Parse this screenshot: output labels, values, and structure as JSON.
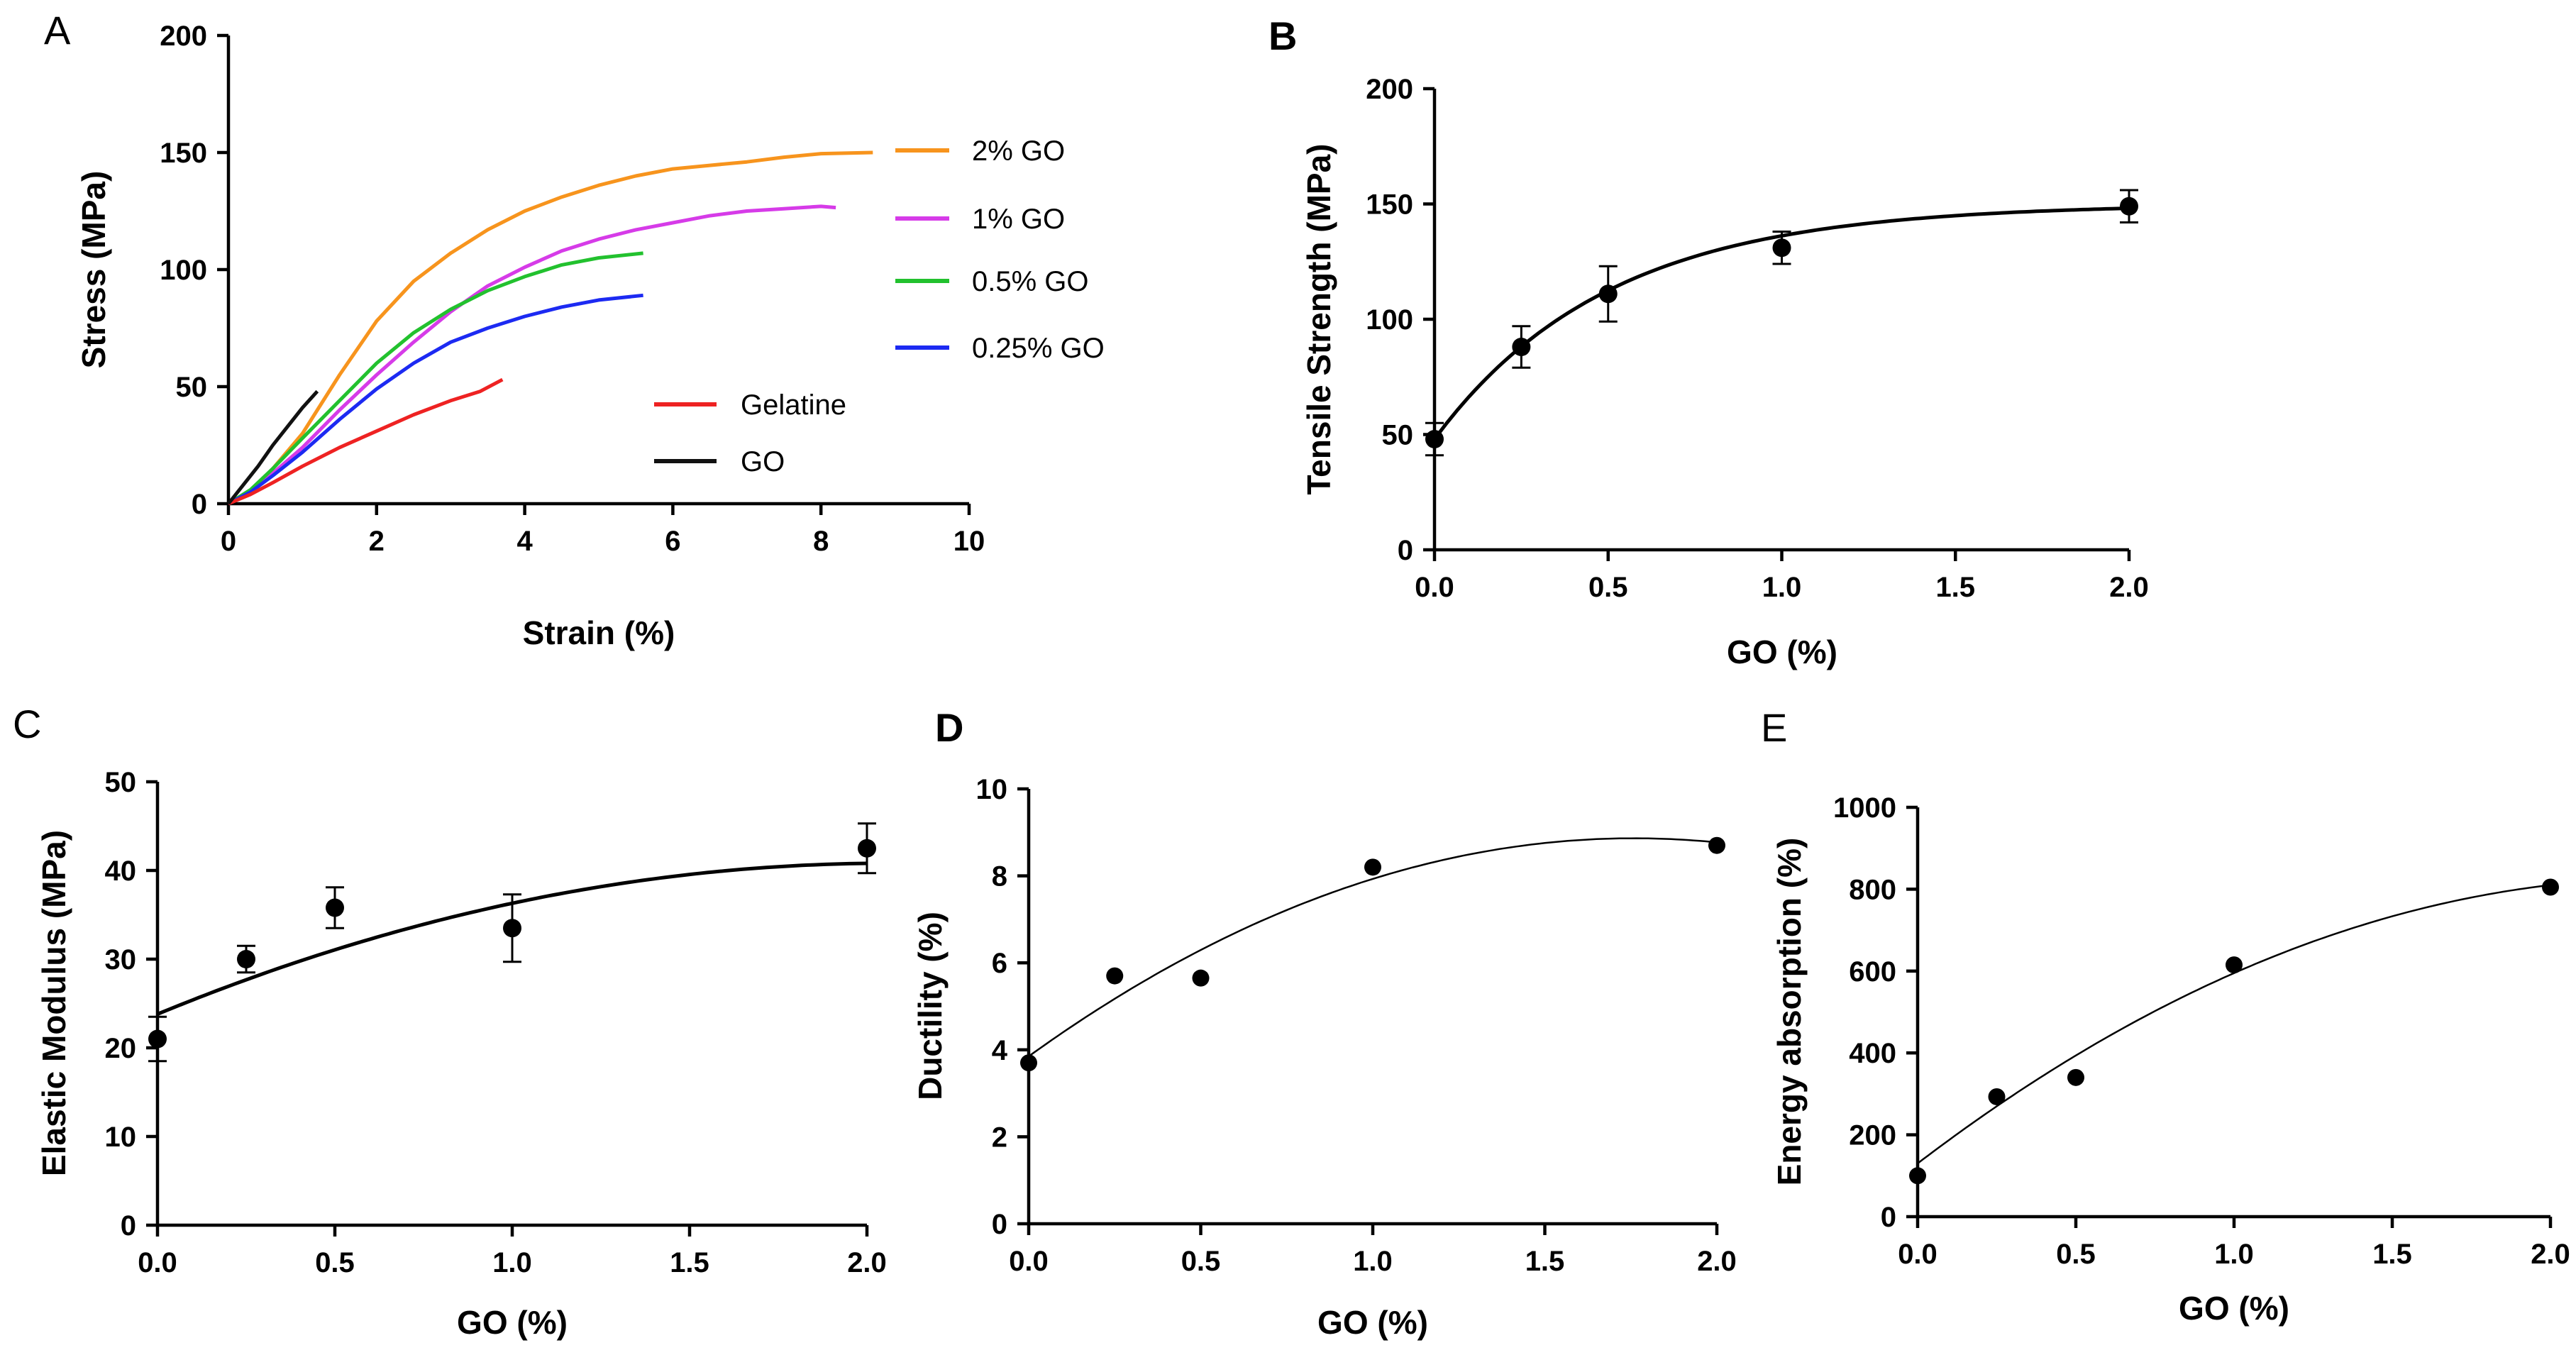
{
  "chart_data": [
    {
      "panel": "A",
      "type": "line",
      "xlabel": "Strain (%)",
      "ylabel": "Stress (MPa)",
      "xlim": [
        0,
        10
      ],
      "ylim": [
        0,
        200
      ],
      "xticks": [
        "0",
        "2",
        "4",
        "6",
        "8",
        "10"
      ],
      "yticks": [
        "0",
        "50",
        "100",
        "150",
        "200"
      ],
      "series": [
        {
          "name": "2% GO",
          "color": "#F7941D",
          "points": [
            [
              0,
              0
            ],
            [
              0.3,
              5
            ],
            [
              0.6,
              15
            ],
            [
              1,
              30
            ],
            [
              1.5,
              55
            ],
            [
              2,
              78
            ],
            [
              2.5,
              95
            ],
            [
              3,
              107
            ],
            [
              3.5,
              117
            ],
            [
              4,
              125
            ],
            [
              4.5,
              131
            ],
            [
              5,
              136
            ],
            [
              5.5,
              140
            ],
            [
              6,
              143
            ],
            [
              6.5,
              144.5
            ],
            [
              7,
              146
            ],
            [
              7.5,
              148
            ],
            [
              8,
              149.5
            ],
            [
              8.7,
              150
            ]
          ]
        },
        {
          "name": "1% GO",
          "color": "#D63BE8",
          "points": [
            [
              0,
              0
            ],
            [
              0.3,
              5
            ],
            [
              0.6,
              13
            ],
            [
              1,
              24
            ],
            [
              1.5,
              40
            ],
            [
              2,
              55
            ],
            [
              2.5,
              69
            ],
            [
              3,
              82
            ],
            [
              3.5,
              93
            ],
            [
              4,
              101
            ],
            [
              4.5,
              108
            ],
            [
              5,
              113
            ],
            [
              5.5,
              117
            ],
            [
              6,
              120
            ],
            [
              6.5,
              123
            ],
            [
              7,
              125
            ],
            [
              7.5,
              126
            ],
            [
              8,
              127
            ],
            [
              8.2,
              126.5
            ]
          ]
        },
        {
          "name": "0.5% GO",
          "color": "#22C12E",
          "points": [
            [
              0,
              0
            ],
            [
              0.3,
              6
            ],
            [
              0.6,
              15
            ],
            [
              1,
              28
            ],
            [
              1.5,
              44
            ],
            [
              2,
              60
            ],
            [
              2.5,
              73
            ],
            [
              3,
              83
            ],
            [
              3.5,
              91
            ],
            [
              4,
              97
            ],
            [
              4.5,
              102
            ],
            [
              5,
              105
            ],
            [
              5.6,
              107
            ]
          ]
        },
        {
          "name": "0.25% GO",
          "color": "#1C2AF2",
          "points": [
            [
              0,
              0
            ],
            [
              0.3,
              5
            ],
            [
              0.6,
              12
            ],
            [
              1,
              22
            ],
            [
              1.5,
              36
            ],
            [
              2,
              49
            ],
            [
              2.5,
              60
            ],
            [
              3,
              69
            ],
            [
              3.5,
              75
            ],
            [
              4,
              80
            ],
            [
              4.5,
              84
            ],
            [
              5,
              87
            ],
            [
              5.6,
              89
            ]
          ]
        },
        {
          "name": "Gelatine",
          "color": "#EE2222",
          "points": [
            [
              0,
              0
            ],
            [
              0.3,
              4
            ],
            [
              0.6,
              9
            ],
            [
              1,
              16
            ],
            [
              1.5,
              24
            ],
            [
              2,
              31
            ],
            [
              2.5,
              38
            ],
            [
              3,
              44
            ],
            [
              3.4,
              48
            ],
            [
              3.7,
              53
            ]
          ]
        },
        {
          "name": "GO",
          "color": "#111111",
          "points": [
            [
              0,
              0
            ],
            [
              0.2,
              8
            ],
            [
              0.4,
              16
            ],
            [
              0.6,
              25
            ],
            [
              0.8,
              33
            ],
            [
              1,
              41
            ],
            [
              1.2,
              48
            ]
          ]
        }
      ]
    },
    {
      "panel": "B",
      "type": "scatter",
      "xlabel": "GO (%)",
      "ylabel": "Tensile Strength (MPa)",
      "xlim": [
        0,
        2
      ],
      "ylim": [
        0,
        200
      ],
      "xticks": [
        "0.0",
        "0.5",
        "1.0",
        "1.5",
        "2.0"
      ],
      "yticks": [
        "0",
        "50",
        "100",
        "150",
        "200"
      ],
      "points": [
        {
          "x": 0,
          "y": 48,
          "err": 7
        },
        {
          "x": 0.25,
          "y": 88,
          "err": 9
        },
        {
          "x": 0.5,
          "y": 111,
          "err": 12
        },
        {
          "x": 1.0,
          "y": 131,
          "err": 7
        },
        {
          "x": 2.0,
          "y": 149,
          "err": 7
        }
      ],
      "fit": "exp",
      "fit_params": {
        "plateau": 150,
        "y0": 48,
        "k": 2.0
      }
    },
    {
      "panel": "C",
      "type": "scatter",
      "xlabel": "GO (%)",
      "ylabel": "Elastic Modulus (MPa)",
      "xlim": [
        0,
        2
      ],
      "ylim": [
        0,
        50
      ],
      "xticks": [
        "0.0",
        "0.5",
        "1.0",
        "1.5",
        "2.0"
      ],
      "yticks": [
        "0",
        "10",
        "20",
        "30",
        "40",
        "50"
      ],
      "points": [
        {
          "x": 0,
          "y": 21,
          "err": 2.5
        },
        {
          "x": 0.25,
          "y": 30,
          "err": 1.5
        },
        {
          "x": 0.5,
          "y": 35.8,
          "err": 2.3
        },
        {
          "x": 1.0,
          "y": 33.5,
          "err": 3.8
        },
        {
          "x": 2.0,
          "y": 42.5,
          "err": 2.8
        }
      ],
      "fit": "poly",
      "fit_coeffs": [
        23.8,
        16.5,
        -4.0
      ]
    },
    {
      "panel": "D",
      "type": "scatter",
      "xlabel": "GO (%)",
      "ylabel": "Ductility (%)",
      "xlim": [
        0,
        2
      ],
      "ylim": [
        0,
        10
      ],
      "xticks": [
        "0.0",
        "0.5",
        "1.0",
        "1.5",
        "2.0"
      ],
      "yticks": [
        "0",
        "2",
        "4",
        "6",
        "8",
        "10"
      ],
      "points": [
        {
          "x": 0,
          "y": 3.7
        },
        {
          "x": 0.25,
          "y": 5.7
        },
        {
          "x": 0.5,
          "y": 5.65
        },
        {
          "x": 1.0,
          "y": 8.2
        },
        {
          "x": 2.0,
          "y": 8.7
        }
      ],
      "fit": "poly",
      "fit_coeffs": [
        3.85,
        5.7,
        -1.62
      ]
    },
    {
      "panel": "E",
      "type": "scatter",
      "xlabel": "GO (%)",
      "ylabel": "Energy absorption (%)",
      "xlim": [
        0,
        2
      ],
      "ylim": [
        0,
        1000
      ],
      "xticks": [
        "0.0",
        "0.5",
        "1.0",
        "1.5",
        "2.0"
      ],
      "yticks": [
        "0",
        "200",
        "400",
        "600",
        "800",
        "1000"
      ],
      "points": [
        {
          "x": 0,
          "y": 100
        },
        {
          "x": 0.25,
          "y": 293
        },
        {
          "x": 0.5,
          "y": 340
        },
        {
          "x": 1.0,
          "y": 615
        },
        {
          "x": 2.0,
          "y": 805
        }
      ],
      "fit": "poly",
      "fit_coeffs": [
        130,
        590,
        -125
      ]
    }
  ]
}
